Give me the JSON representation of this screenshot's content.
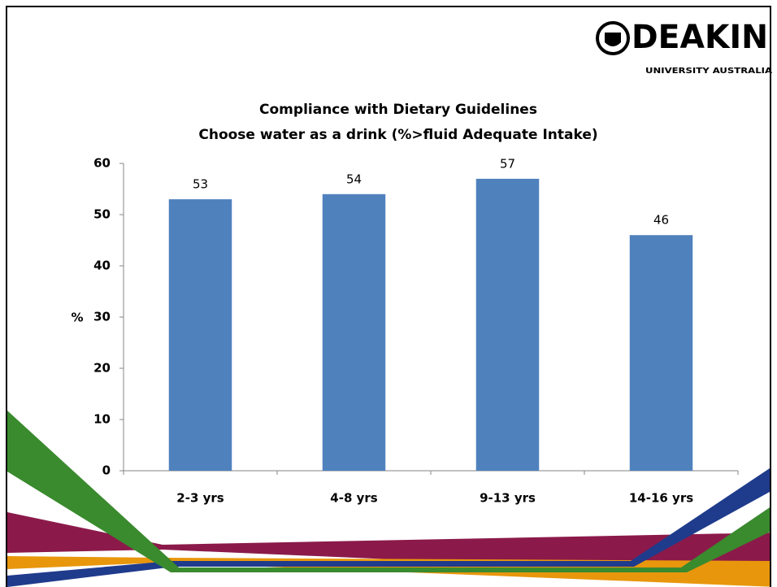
{
  "logo": {
    "name": "DEAKIN",
    "tagline": "UNIVERSITY AUSTRALIA"
  },
  "chart_data": {
    "type": "bar",
    "title": "Compliance with Dietary Guidelines",
    "subtitle": "Choose water as a drink  (%>fluid Adequate Intake)",
    "y_label": "%",
    "categories": [
      "2-3 yrs",
      "4-8 yrs",
      "9-13 yrs",
      "14-16 yrs"
    ],
    "values": [
      53,
      54,
      57,
      46
    ],
    "color": "#4f81bd",
    "ylim": [
      0,
      60
    ],
    "yticks": [
      0,
      10,
      20,
      30,
      40,
      50,
      60
    ],
    "grid": false
  }
}
